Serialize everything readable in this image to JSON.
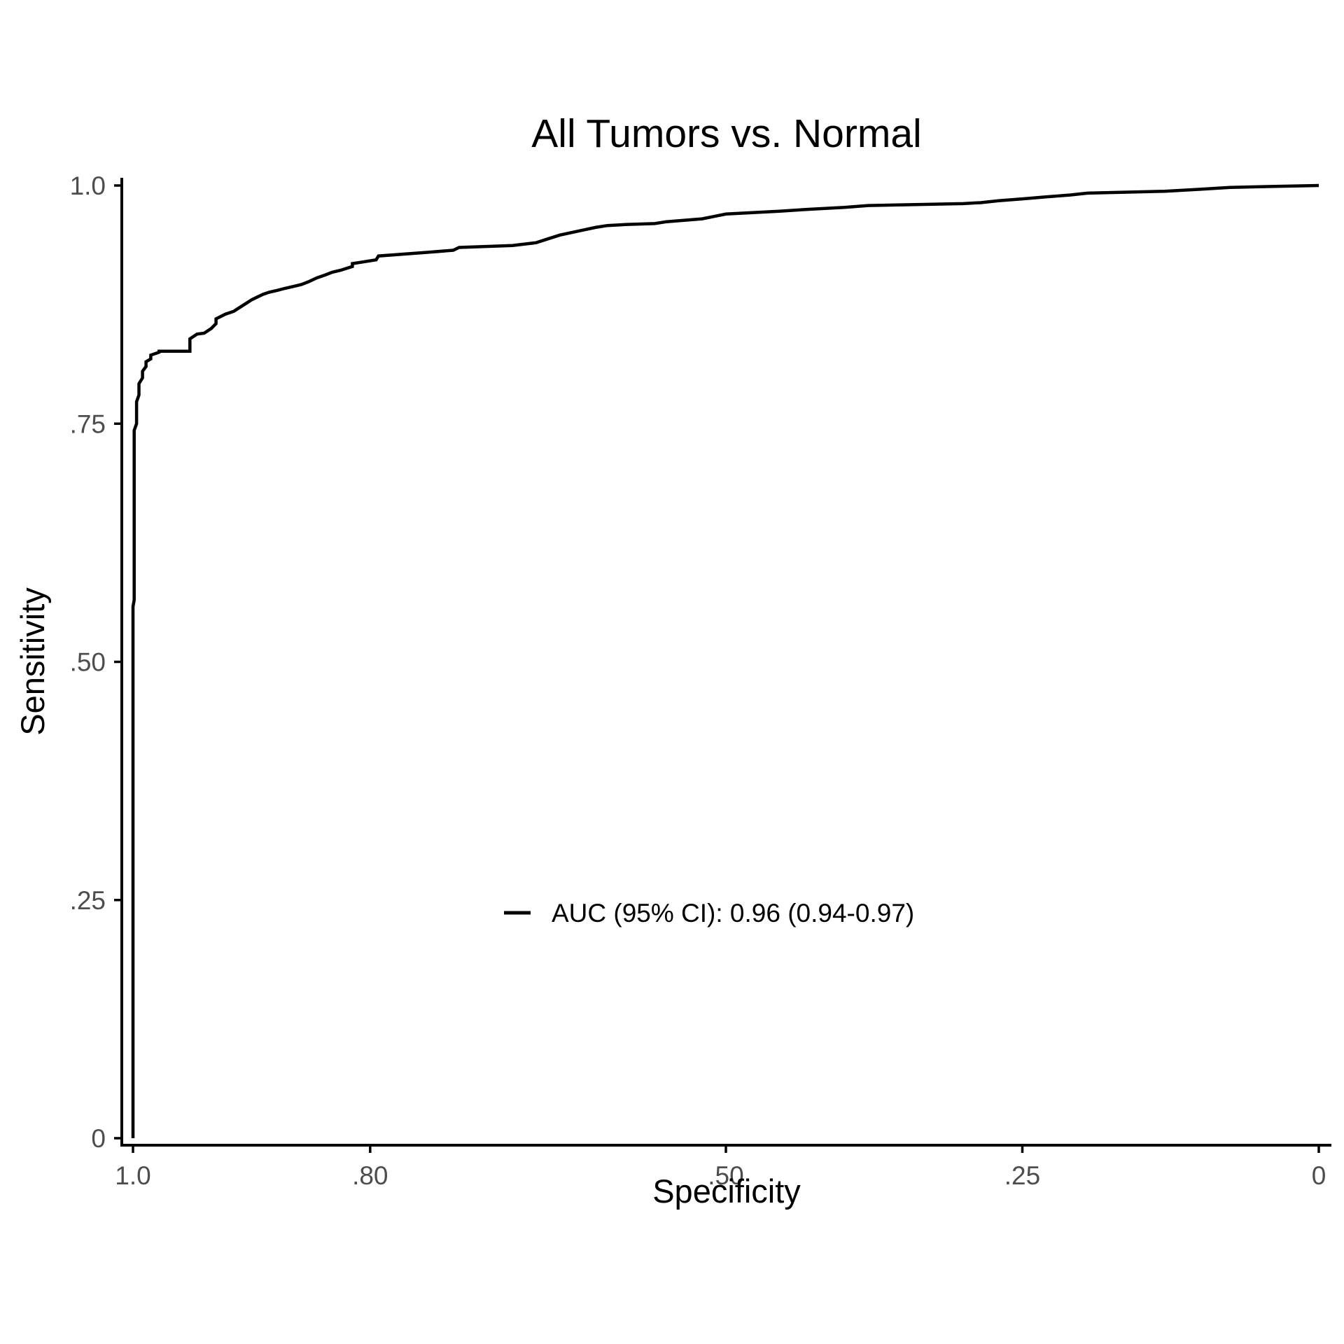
{
  "chart_data": {
    "type": "line",
    "title": "All Tumors vs. Normal",
    "xlabel": "Specificity",
    "ylabel": "Sensitivity",
    "x_reversed": true,
    "xlim": [
      1.0,
      0.0
    ],
    "ylim": [
      0.0,
      1.0
    ],
    "x_ticks": [
      {
        "value": 1.0,
        "label": "1.0"
      },
      {
        "value": 0.8,
        "label": ".80"
      },
      {
        "value": 0.5,
        "label": ".50"
      },
      {
        "value": 0.25,
        "label": ".25"
      },
      {
        "value": 0.0,
        "label": "0"
      }
    ],
    "y_ticks": [
      {
        "value": 0.0,
        "label": "0"
      },
      {
        "value": 0.25,
        "label": ".25"
      },
      {
        "value": 0.5,
        "label": ".50"
      },
      {
        "value": 0.75,
        "label": ".75"
      },
      {
        "value": 1.0,
        "label": "1.0"
      }
    ],
    "grid": false,
    "legend": {
      "position": "center-bottom",
      "label": "AUC (95% CI): 0.96 (0.94-0.97)"
    },
    "series": [
      {
        "name": "AUC (95% CI): 0.96 (0.94-0.97)",
        "specificity": [
          1.0,
          1.0,
          0.999,
          0.999,
          0.997,
          0.997,
          0.995,
          0.995,
          0.992,
          0.992,
          0.989,
          0.989,
          0.985,
          0.985,
          0.978,
          0.978,
          0.972,
          0.968,
          0.962,
          0.952,
          0.952,
          0.946,
          0.94,
          0.934,
          0.93,
          0.93,
          0.922,
          0.915,
          0.91,
          0.905,
          0.9,
          0.895,
          0.89,
          0.885,
          0.878,
          0.872,
          0.865,
          0.858,
          0.852,
          0.845,
          0.838,
          0.832,
          0.825,
          0.815,
          0.815,
          0.795,
          0.793,
          0.75,
          0.73,
          0.725,
          0.68,
          0.66,
          0.65,
          0.64,
          0.625,
          0.61,
          0.6,
          0.585,
          0.56,
          0.55,
          0.52,
          0.5,
          0.455,
          0.43,
          0.4,
          0.38,
          0.34,
          0.3,
          0.285,
          0.27,
          0.25,
          0.23,
          0.21,
          0.195,
          0.13,
          0.1,
          0.075,
          0.04,
          0.0
        ],
        "sensitivity": [
          0.0,
          0.558,
          0.565,
          0.743,
          0.75,
          0.773,
          0.78,
          0.792,
          0.798,
          0.805,
          0.81,
          0.815,
          0.818,
          0.822,
          0.825,
          0.826,
          0.826,
          0.826,
          0.826,
          0.826,
          0.839,
          0.844,
          0.845,
          0.85,
          0.855,
          0.86,
          0.865,
          0.868,
          0.872,
          0.876,
          0.88,
          0.883,
          0.886,
          0.888,
          0.89,
          0.892,
          0.894,
          0.896,
          0.899,
          0.903,
          0.906,
          0.909,
          0.911,
          0.915,
          0.918,
          0.922,
          0.926,
          0.93,
          0.932,
          0.935,
          0.937,
          0.94,
          0.944,
          0.948,
          0.952,
          0.956,
          0.958,
          0.959,
          0.96,
          0.962,
          0.965,
          0.97,
          0.973,
          0.975,
          0.977,
          0.979,
          0.98,
          0.981,
          0.982,
          0.984,
          0.986,
          0.988,
          0.99,
          0.992,
          0.994,
          0.996,
          0.998,
          0.999,
          1.0
        ]
      }
    ]
  }
}
